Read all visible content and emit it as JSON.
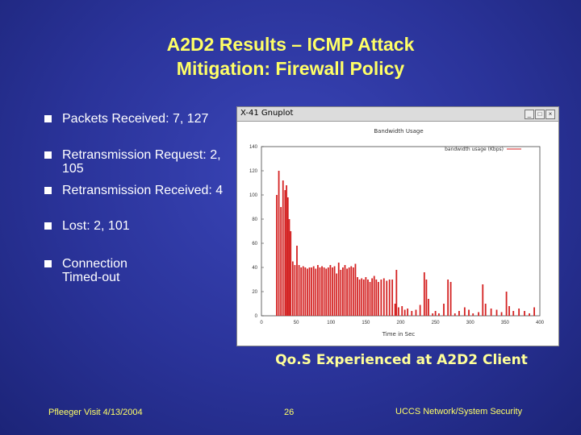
{
  "slide": {
    "title_line1": "A2D2 Results – ICMP Attack",
    "title_line2": "Mitigation: Firewall Policy"
  },
  "bullets": [
    "Packets Received: 7, 127",
    "Retransmission Request: 2, 105",
    "Retransmission Received: 4",
    "Lost: 2, 101",
    "Connection Timed-out"
  ],
  "window": {
    "title": "X-41 Gnuplot",
    "buttons": [
      "_",
      "□",
      "×"
    ]
  },
  "chart_data": {
    "type": "bar",
    "title": "Bandwidth Usage",
    "ylabel": "",
    "xlabel": "Time in Sec",
    "legend": "bandwidth usage (Kbps)",
    "legend_position": "top-right",
    "xlim": [
      0,
      400
    ],
    "ylim": [
      0,
      140
    ],
    "x_ticks": [
      "0",
      "50",
      "100",
      "150",
      "200",
      "250",
      "300",
      "350",
      "400"
    ],
    "y_ticks": [
      "0",
      "20",
      "40",
      "60",
      "80",
      "100",
      "120",
      "140"
    ],
    "color": "#d42222",
    "spikes": [
      [
        22,
        100
      ],
      [
        25,
        120
      ],
      [
        28,
        90
      ],
      [
        31,
        112
      ],
      [
        34,
        104
      ],
      [
        36,
        108
      ],
      [
        38,
        98
      ],
      [
        40,
        80
      ],
      [
        42,
        70
      ],
      [
        45,
        45
      ],
      [
        48,
        42
      ],
      [
        51,
        58
      ],
      [
        54,
        42
      ],
      [
        57,
        40
      ],
      [
        60,
        41
      ],
      [
        63,
        40
      ],
      [
        66,
        39
      ],
      [
        69,
        40
      ],
      [
        72,
        40
      ],
      [
        75,
        41
      ],
      [
        78,
        39
      ],
      [
        81,
        42
      ],
      [
        84,
        40
      ],
      [
        87,
        41
      ],
      [
        90,
        40
      ],
      [
        93,
        39
      ],
      [
        96,
        40
      ],
      [
        99,
        42
      ],
      [
        102,
        40
      ],
      [
        105,
        41
      ],
      [
        108,
        35
      ],
      [
        111,
        44
      ],
      [
        114,
        38
      ],
      [
        117,
        40
      ],
      [
        120,
        42
      ],
      [
        123,
        39
      ],
      [
        126,
        40
      ],
      [
        129,
        41
      ],
      [
        132,
        40
      ],
      [
        135,
        43
      ],
      [
        138,
        32
      ],
      [
        141,
        30
      ],
      [
        144,
        31
      ],
      [
        147,
        30
      ],
      [
        150,
        32
      ],
      [
        153,
        30
      ],
      [
        156,
        28
      ],
      [
        159,
        31
      ],
      [
        162,
        33
      ],
      [
        165,
        30
      ],
      [
        168,
        28
      ],
      [
        172,
        30
      ],
      [
        176,
        31
      ],
      [
        180,
        29
      ],
      [
        184,
        30
      ],
      [
        188,
        30
      ],
      [
        192,
        10
      ],
      [
        194,
        38
      ],
      [
        197,
        7
      ],
      [
        202,
        8
      ],
      [
        206,
        5
      ],
      [
        210,
        6
      ],
      [
        216,
        4
      ],
      [
        222,
        5
      ],
      [
        228,
        9
      ],
      [
        234,
        36
      ],
      [
        237,
        30
      ],
      [
        240,
        14
      ],
      [
        246,
        2
      ],
      [
        250,
        4
      ],
      [
        255,
        2
      ],
      [
        262,
        10
      ],
      [
        268,
        30
      ],
      [
        272,
        28
      ],
      [
        278,
        2
      ],
      [
        284,
        4
      ],
      [
        292,
        7
      ],
      [
        298,
        5
      ],
      [
        304,
        2
      ],
      [
        312,
        3
      ],
      [
        318,
        26
      ],
      [
        322,
        10
      ],
      [
        330,
        6
      ],
      [
        338,
        5
      ],
      [
        345,
        3
      ],
      [
        352,
        20
      ],
      [
        356,
        8
      ],
      [
        362,
        4
      ],
      [
        370,
        6
      ],
      [
        378,
        4
      ],
      [
        385,
        2
      ],
      [
        392,
        7
      ]
    ]
  },
  "caption": "Qo.S Experienced at A2D2 Client",
  "footer": {
    "left": "Pfleeger Visit 4/13/2004",
    "center": "26",
    "right": "UCCS Network/System Security"
  }
}
